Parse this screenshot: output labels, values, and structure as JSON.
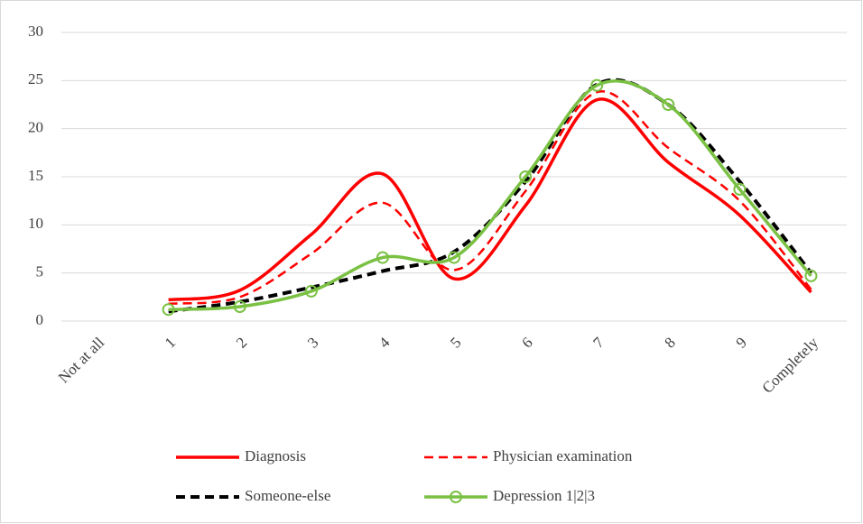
{
  "chart_data": {
    "type": "line",
    "categories": [
      "Not at all",
      "1",
      "2",
      "3",
      "4",
      "5",
      "6",
      "7",
      "8",
      "9",
      "Completely"
    ],
    "series": [
      {
        "name": "Diagnosis",
        "color": "#ff0000",
        "line_style": "solid",
        "values": [
          null,
          2.2,
          3.2,
          9,
          15.3,
          4.4,
          12,
          23,
          16.5,
          11,
          3
        ]
      },
      {
        "name": "Physician examination",
        "color": "#ff0000",
        "line_style": "dashed",
        "values": [
          null,
          1.8,
          2.5,
          7,
          12.3,
          5.3,
          13.5,
          23.8,
          18,
          12.5,
          3.3
        ]
      },
      {
        "name": "Someone-else",
        "color": "#000000",
        "line_style": "dashed",
        "values": [
          null,
          1,
          2,
          3.5,
          5.2,
          7.2,
          14.5,
          24.6,
          22.5,
          14.5,
          5
        ]
      },
      {
        "name": "Depression 1|2|3",
        "color": "#7ac143",
        "line_style": "solid",
        "marker": "circle",
        "values": [
          null,
          1.2,
          1.5,
          3.1,
          6.6,
          6.6,
          15,
          24.5,
          22.5,
          13.7,
          4.7
        ]
      }
    ],
    "ylim": [
      0,
      30
    ],
    "yticks": [
      0,
      5,
      10,
      15,
      20,
      25,
      30
    ],
    "grid": true,
    "legend": "bottom"
  }
}
